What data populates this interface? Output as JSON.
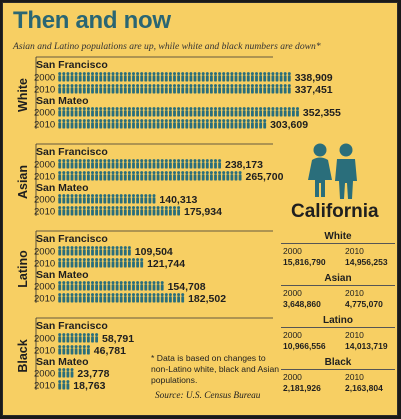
{
  "title": "Then and now",
  "subtitle": "Asian and Latino populations are up, while white and black numbers are down*",
  "colors": {
    "background": "#f7cf63",
    "figure": "#2a6e7b",
    "title": "#2a6673"
  },
  "icon": "people-pair-icon",
  "chart_data": {
    "type": "bar",
    "unit_per_figure": "pictogram person icons, bar length proportional to population",
    "groups": [
      {
        "name": "White",
        "cities": [
          {
            "name": "San Francisco",
            "rows": [
              {
                "year": "2000",
                "value": 338909,
                "label": "338,909"
              },
              {
                "year": "2010",
                "value": 337451,
                "label": "337,451"
              }
            ]
          },
          {
            "name": "San Mateo",
            "rows": [
              {
                "year": "2000",
                "value": 352355,
                "label": "352,355"
              },
              {
                "year": "2010",
                "value": 303609,
                "label": "303,609"
              }
            ]
          }
        ]
      },
      {
        "name": "Asian",
        "cities": [
          {
            "name": "San Francisco",
            "rows": [
              {
                "year": "2000",
                "value": 238173,
                "label": "238,173"
              },
              {
                "year": "2010",
                "value": 265700,
                "label": "265,700"
              }
            ]
          },
          {
            "name": "San Mateo",
            "rows": [
              {
                "year": "2000",
                "value": 140313,
                "label": "140,313"
              },
              {
                "year": "2010",
                "value": 175934,
                "label": "175,934"
              }
            ]
          }
        ]
      },
      {
        "name": "Latino",
        "cities": [
          {
            "name": "San Francisco",
            "rows": [
              {
                "year": "2000",
                "value": 109504,
                "label": "109,504"
              },
              {
                "year": "2010",
                "value": 121744,
                "label": "121,744"
              }
            ]
          },
          {
            "name": "San Mateo",
            "rows": [
              {
                "year": "2000",
                "value": 154708,
                "label": "154,708"
              },
              {
                "year": "2010",
                "value": 182502,
                "label": "182,502"
              }
            ]
          }
        ]
      },
      {
        "name": "Black",
        "cities": [
          {
            "name": "San Francisco",
            "rows": [
              {
                "year": "2000",
                "value": 58791,
                "label": "58,791"
              },
              {
                "year": "2010",
                "value": 46781,
                "label": "46,781"
              }
            ]
          },
          {
            "name": "San Mateo",
            "rows": [
              {
                "year": "2000",
                "value": 23778,
                "label": "23,778"
              },
              {
                "year": "2010",
                "value": 18763,
                "label": "18,763"
              }
            ]
          }
        ]
      }
    ],
    "california": {
      "title": "California",
      "rows": [
        {
          "race": "White",
          "y1": "2000",
          "v1": "15,816,790",
          "y2": "2010",
          "v2": "14,956,253"
        },
        {
          "race": "Asian",
          "y1": "2000",
          "v1": "3,648,860",
          "y2": "2010",
          "v2": "4,775,070"
        },
        {
          "race": "Latino",
          "y1": "2000",
          "v1": "10,966,556",
          "y2": "2010",
          "v2": "14,013,719"
        },
        {
          "race": "Black",
          "y1": "2000",
          "v1": "2,181,926",
          "y2": "2010",
          "v2": "2,163,804"
        }
      ]
    }
  },
  "footnote": "* Data is based on changes to non-Latino white, black and Asian populations.",
  "source": "Source: U.S. Census Bureau"
}
